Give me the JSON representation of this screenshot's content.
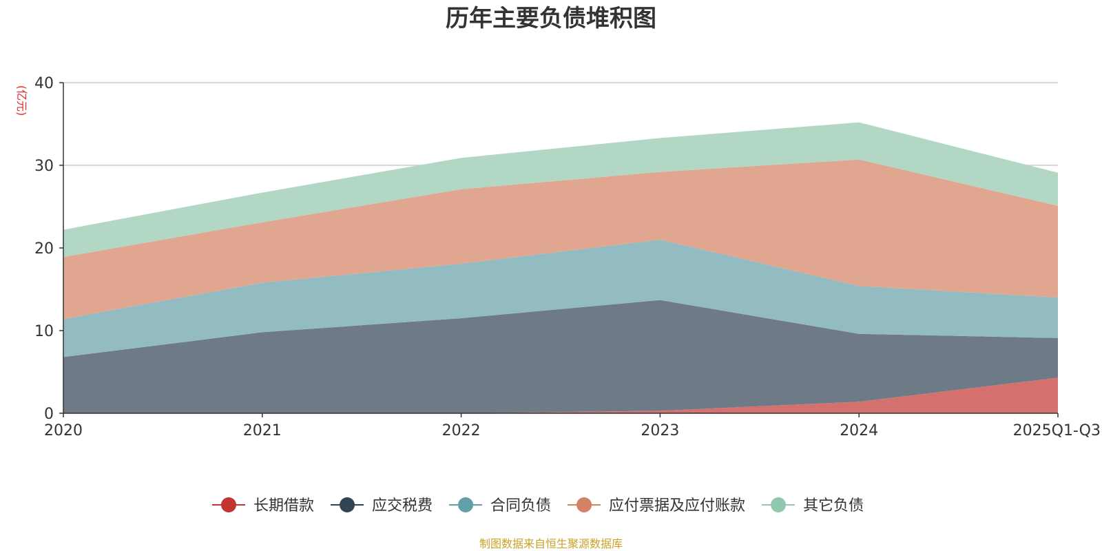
{
  "chart_data": {
    "type": "area",
    "stacked": true,
    "title": "历年主要负债堆积图",
    "unit_label": "(亿元)",
    "categories": [
      "2020",
      "2021",
      "2022",
      "2023",
      "2024",
      "2025Q1-Q3"
    ],
    "ylim": [
      0,
      40
    ],
    "yticks": [
      0,
      10,
      20,
      30,
      40
    ],
    "grid": true,
    "legend_position": "bottom",
    "series": [
      {
        "name": "长期借款",
        "color": "#c23531",
        "fill": "#d4716e",
        "values": [
          0,
          0,
          0,
          0.3,
          1.4,
          4.3
        ]
      },
      {
        "name": "应交税费",
        "color": "#2f4554",
        "fill": "#6e7b86",
        "values": [
          6.8,
          9.8,
          11.5,
          13.4,
          8.2,
          4.8
        ]
      },
      {
        "name": "合同负债",
        "color": "#61a0a8",
        "fill": "#92bbc2",
        "values": [
          4.6,
          6.0,
          6.6,
          7.3,
          5.8,
          4.9
        ]
      },
      {
        "name": "应付票据及应付账款",
        "color": "#d48265",
        "fill": "#e0a690",
        "values": [
          7.5,
          7.3,
          9.0,
          8.2,
          15.3,
          11.1
        ]
      },
      {
        "name": "其它负债",
        "color": "#91c7ae",
        "fill": "#b2d7c5",
        "values": [
          3.3,
          3.6,
          3.8,
          4.1,
          4.5,
          4.0
        ]
      }
    ],
    "source_text": "制图数据来自恒生聚源数据库",
    "source_color": "#c9a227",
    "unit_color": "#e8262a"
  }
}
